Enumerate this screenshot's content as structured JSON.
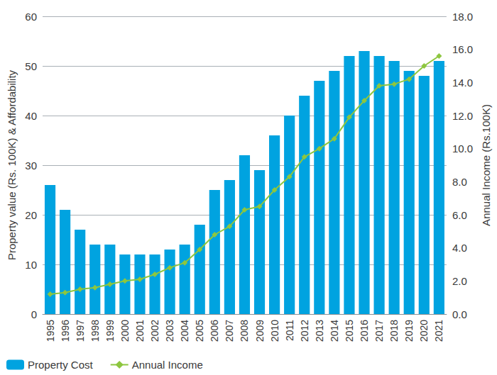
{
  "chart_data": {
    "type": "bar",
    "categories": [
      "1995",
      "1996",
      "1997",
      "1998",
      "1999",
      "2000",
      "2001",
      "2002",
      "2003",
      "2004",
      "2005",
      "2006",
      "2007",
      "2008",
      "2009",
      "2010",
      "2011",
      "2012",
      "2013",
      "2014",
      "2015",
      "2016",
      "2017",
      "2018",
      "2019",
      "2020",
      "2021"
    ],
    "series": [
      {
        "name": "Property Cost",
        "type": "bar",
        "color": "#00a3e0",
        "values": [
          26,
          21,
          17,
          14,
          14,
          12,
          12,
          12,
          13,
          14,
          18,
          25,
          27,
          32,
          29,
          36,
          40,
          44,
          47,
          49,
          52,
          53,
          52,
          51,
          49,
          48,
          51
        ]
      },
      {
        "name": "Annual Income",
        "type": "line",
        "axis": "y2",
        "color": "#8dc63f",
        "marker": "diamond",
        "values": [
          1.2,
          1.3,
          1.5,
          1.6,
          1.8,
          2.0,
          2.1,
          2.4,
          2.8,
          3.1,
          3.9,
          4.8,
          5.3,
          6.3,
          6.5,
          7.5,
          8.3,
          9.5,
          10.0,
          10.6,
          11.9,
          12.9,
          13.8,
          13.9,
          14.2,
          15.0,
          15.6
        ]
      }
    ],
    "ylabel": "Property value (Rs. 100K) & Affordability",
    "y2label": "Annual Income (Rs.100K)",
    "ylim": [
      0,
      60
    ],
    "yticks": [
      0,
      10,
      20,
      30,
      40,
      50,
      60
    ],
    "y2lim": [
      0,
      18
    ],
    "y2ticks": [
      {
        "value": 0,
        "label": "0.0"
      },
      {
        "value": 2,
        "label": "2.0"
      },
      {
        "value": 4,
        "label": "4.0"
      },
      {
        "value": 6,
        "label": "6.0"
      },
      {
        "value": 8,
        "label": "8.0"
      },
      {
        "value": 10,
        "label": "10.0"
      },
      {
        "value": 12,
        "label": "12.0"
      },
      {
        "value": 14,
        "label": "14.0"
      },
      {
        "value": 16,
        "label": "16.0"
      },
      {
        "value": 18,
        "label": "18.0"
      }
    ],
    "grid": true,
    "legend": "bottom-left"
  }
}
